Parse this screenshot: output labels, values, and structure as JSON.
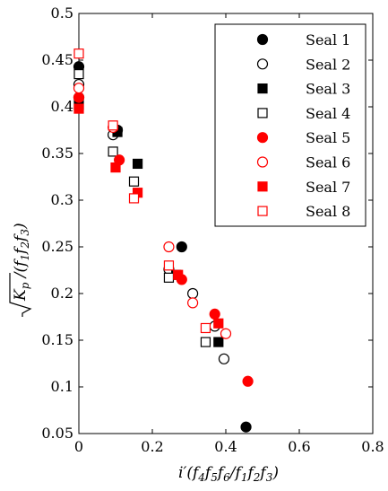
{
  "chart_data": {
    "type": "scatter",
    "xlabel": "i′(f₄f₅f₆/f₁f₂f₃)",
    "ylabel": "√K_p /(f₁f₂f₃)",
    "xlim": [
      0,
      0.8
    ],
    "ylim": [
      0.05,
      0.5
    ],
    "xticks": [
      "0",
      "0.2",
      "0.4",
      "0.6",
      "0.8"
    ],
    "yticks": [
      "0.05",
      "0.1",
      "0.15",
      "0.2",
      "0.25",
      "0.3",
      "0.35",
      "0.4",
      "0.45",
      "0.5"
    ],
    "grid": false,
    "legend_position": "top-right",
    "series": [
      {
        "name": "Seal 1",
        "marker": "circle",
        "filled": true,
        "color": "#000000",
        "points": [
          [
            0.0,
            0.443
          ],
          [
            0.0,
            0.41
          ],
          [
            0.105,
            0.375
          ],
          [
            0.28,
            0.25
          ],
          [
            0.455,
            0.057
          ]
        ]
      },
      {
        "name": "Seal 2",
        "marker": "circle",
        "filled": false,
        "color": "#000000",
        "points": [
          [
            0.0,
            0.424
          ],
          [
            0.093,
            0.37
          ],
          [
            0.245,
            0.226
          ],
          [
            0.31,
            0.2
          ],
          [
            0.37,
            0.165
          ],
          [
            0.395,
            0.13
          ]
        ]
      },
      {
        "name": "Seal 3",
        "marker": "square",
        "filled": true,
        "color": "#000000",
        "points": [
          [
            0.0,
            0.402
          ],
          [
            0.105,
            0.373
          ],
          [
            0.16,
            0.339
          ],
          [
            0.265,
            0.22
          ],
          [
            0.38,
            0.148
          ]
        ]
      },
      {
        "name": "Seal 4",
        "marker": "square",
        "filled": false,
        "color": "#000000",
        "points": [
          [
            0.0,
            0.435
          ],
          [
            0.093,
            0.352
          ],
          [
            0.15,
            0.32
          ],
          [
            0.245,
            0.217
          ],
          [
            0.345,
            0.148
          ]
        ]
      },
      {
        "name": "Seal 5",
        "marker": "circle",
        "filled": true,
        "color": "#ff0000",
        "points": [
          [
            0.0,
            0.41
          ],
          [
            0.11,
            0.343
          ],
          [
            0.28,
            0.215
          ],
          [
            0.37,
            0.178
          ],
          [
            0.46,
            0.106
          ]
        ]
      },
      {
        "name": "Seal 6",
        "marker": "circle",
        "filled": false,
        "color": "#ff0000",
        "points": [
          [
            0.0,
            0.42
          ],
          [
            0.093,
            0.378
          ],
          [
            0.245,
            0.25
          ],
          [
            0.31,
            0.19
          ],
          [
            0.4,
            0.157
          ]
        ]
      },
      {
        "name": "Seal 7",
        "marker": "square",
        "filled": true,
        "color": "#ff0000",
        "points": [
          [
            0.0,
            0.398
          ],
          [
            0.1,
            0.335
          ],
          [
            0.16,
            0.308
          ],
          [
            0.27,
            0.22
          ],
          [
            0.38,
            0.168
          ]
        ]
      },
      {
        "name": "Seal 8",
        "marker": "square",
        "filled": false,
        "color": "#ff0000",
        "points": [
          [
            0.0,
            0.457
          ],
          [
            0.093,
            0.38
          ],
          [
            0.15,
            0.302
          ],
          [
            0.245,
            0.23
          ],
          [
            0.345,
            0.163
          ]
        ]
      }
    ]
  }
}
